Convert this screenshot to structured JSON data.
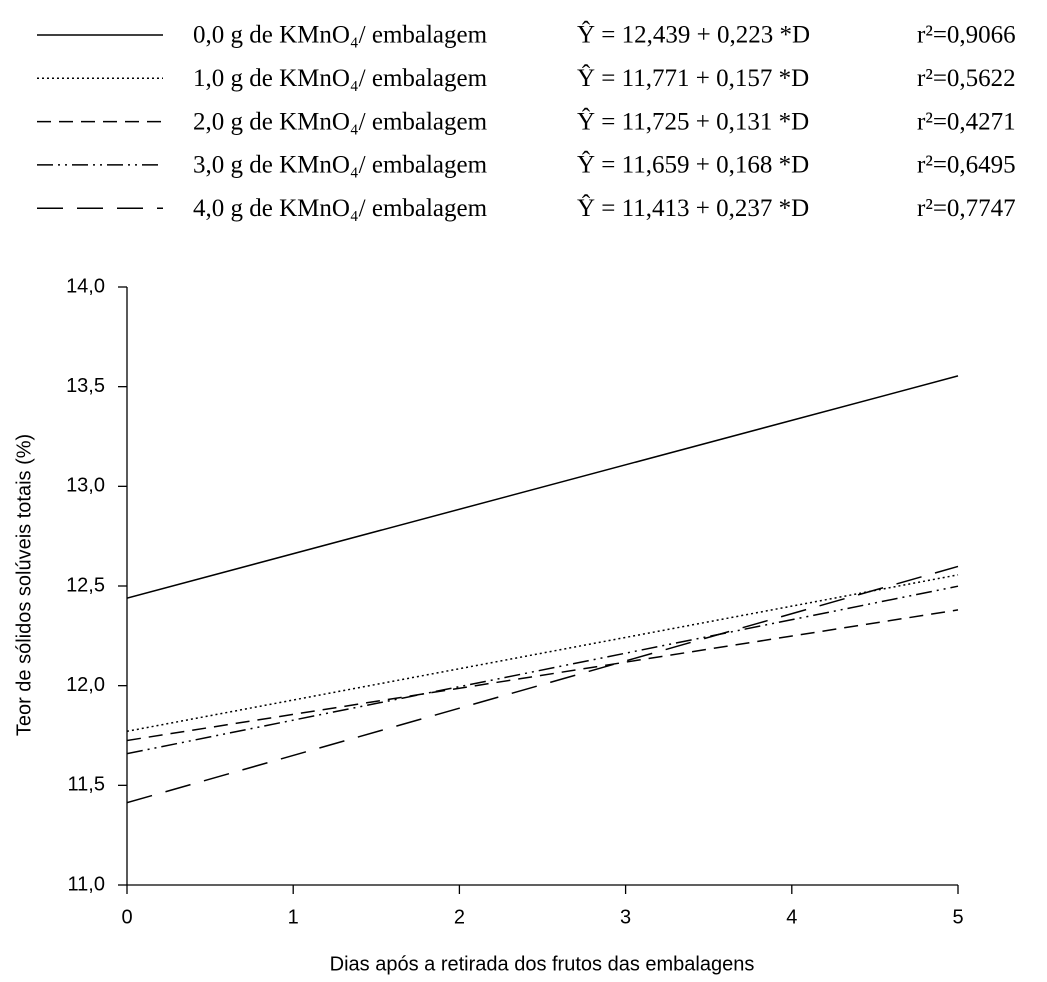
{
  "chart_data": {
    "type": "line",
    "x_label": "Dias após a retirada dos frutos das embalagens",
    "y_label": "Teor de sólidos solúveis totais (%)",
    "x": [
      0,
      5
    ],
    "series": [
      {
        "name": "0,0 g de KMnO₄/ embalagem",
        "equation": "Ŷ = 12,439 + 0,223 *D",
        "r2": "r²=0,9066",
        "color": "#000000",
        "dash": "solid",
        "values": [
          12.439,
          13.554
        ]
      },
      {
        "name": "1,0 g de KMnO₄/ embalagem",
        "equation": "Ŷ = 11,771 + 0,157 *D",
        "r2": "r²=0,5622",
        "color": "#000000",
        "dash": "dotted",
        "values": [
          11.771,
          12.556
        ]
      },
      {
        "name": "2,0 g de KMnO₄/ embalagem",
        "equation": "Ŷ = 11,725 + 0,131 *D",
        "r2": "r²=0,4271",
        "color": "#000000",
        "dash": "dashed",
        "values": [
          11.725,
          12.38
        ]
      },
      {
        "name": "3,0 g de KMnO₄/ embalagem",
        "equation": "Ŷ = 11,659 + 0,168 *D",
        "r2": "r²=0,6495",
        "color": "#000000",
        "dash": "dash-dot-dot",
        "values": [
          11.659,
          12.499
        ]
      },
      {
        "name": "4,0 g de KMnO₄/ embalagem",
        "equation": "Ŷ = 11,413 + 0,237 *D",
        "r2": "r²=0,7747",
        "color": "#000000",
        "dash": "long-dash",
        "values": [
          11.413,
          12.598
        ]
      }
    ],
    "xlim": [
      0,
      5
    ],
    "xticks": [
      0,
      1,
      2,
      3,
      4,
      5
    ],
    "ylim": [
      11,
      14
    ],
    "yticks": [
      {
        "value": 11,
        "label": "11,0"
      },
      {
        "value": 11.5,
        "label": "11,5"
      },
      {
        "value": 12,
        "label": "12,0"
      },
      {
        "value": 12.5,
        "label": "12,5"
      },
      {
        "value": 13,
        "label": "13,0"
      },
      {
        "value": 13.5,
        "label": "13,5"
      },
      {
        "value": 14,
        "label": "14,0"
      }
    ],
    "grid": false
  }
}
